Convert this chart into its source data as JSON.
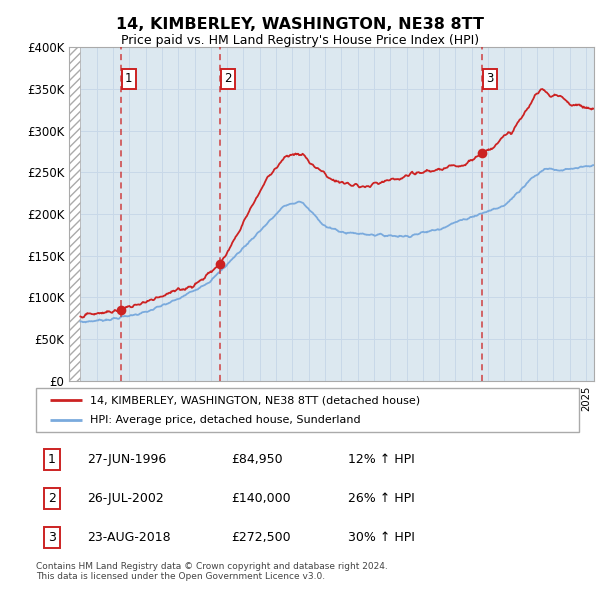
{
  "title": "14, KIMBERLEY, WASHINGTON, NE38 8TT",
  "subtitle": "Price paid vs. HM Land Registry's House Price Index (HPI)",
  "legend_line1": "14, KIMBERLEY, WASHINGTON, NE38 8TT (detached house)",
  "legend_line2": "HPI: Average price, detached house, Sunderland",
  "copyright": "Contains HM Land Registry data © Crown copyright and database right 2024.\nThis data is licensed under the Open Government Licence v3.0.",
  "sales_display": [
    {
      "num": "1",
      "date": "27-JUN-1996",
      "price": "£84,950",
      "pct": "12% ↑ HPI"
    },
    {
      "num": "2",
      "date": "26-JUL-2002",
      "price": "£140,000",
      "pct": "26% ↑ HPI"
    },
    {
      "num": "3",
      "date": "23-AUG-2018",
      "price": "£272,500",
      "pct": "30% ↑ HPI"
    }
  ],
  "sale_dates": [
    1996.49,
    2002.56,
    2018.64
  ],
  "sale_prices": [
    84950,
    140000,
    272500
  ],
  "ylim": [
    0,
    400000
  ],
  "yticks": [
    0,
    50000,
    100000,
    150000,
    200000,
    250000,
    300000,
    350000,
    400000
  ],
  "ytick_labels": [
    "£0",
    "£50K",
    "£100K",
    "£150K",
    "£200K",
    "£250K",
    "£300K",
    "£350K",
    "£400K"
  ],
  "xmin": 1994.0,
  "xmax": 2025.5,
  "red_color": "#cc2222",
  "blue_color": "#7aaadd",
  "grid_color": "#c8d8e8",
  "bg_color": "#dce8f0",
  "hatch_xstart": 1993.3,
  "hatch_xend": 1994.0
}
